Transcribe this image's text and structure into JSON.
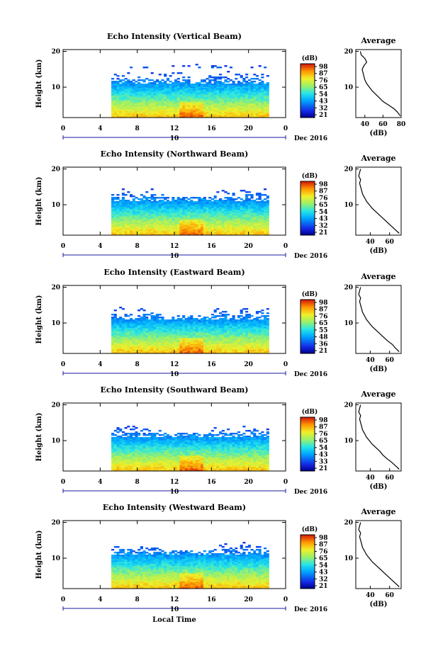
{
  "chart_data": [
    {
      "type": "heatmap",
      "title": "Echo Intensity (Vertical Beam)",
      "ylabel": "Height (km)",
      "yticks": [
        "20",
        "10"
      ],
      "ylim": [
        1.5,
        20.5
      ],
      "xticks": [
        "0",
        "4",
        "8",
        "12",
        "16",
        "20",
        "0"
      ],
      "xlim": [
        0,
        24
      ],
      "date_label": "10",
      "month_label": "Dec 2016",
      "data_start_hour": 5.2,
      "data_end_hour": 22.2,
      "colorbar": {
        "unit": "(dB)",
        "ticks": [
          "98",
          "87",
          "76",
          "65",
          "54",
          "43",
          "32",
          "21"
        ],
        "range": [
          21,
          98
        ]
      },
      "profile": {
        "title": "Average",
        "xlabel": "(dB)",
        "xticks": [
          "40",
          "60",
          "80"
        ],
        "xlim": [
          30,
          80
        ],
        "yticks": [
          "20",
          "10"
        ],
        "heights": [
          2,
          3,
          4,
          5,
          6,
          7,
          8,
          9,
          10,
          11,
          12,
          13,
          14,
          15,
          16,
          17,
          18,
          19,
          20
        ],
        "values": [
          79,
          76,
          72,
          66,
          60,
          56,
          52,
          48,
          45,
          42,
          40,
          39,
          38,
          37,
          39,
          42,
          40,
          36,
          35
        ]
      }
    },
    {
      "type": "heatmap",
      "title": "Echo Intensity (Northward Beam)",
      "ylabel": "Height (km)",
      "yticks": [
        "20",
        "10"
      ],
      "ylim": [
        1.5,
        20.5
      ],
      "xticks": [
        "0",
        "4",
        "8",
        "12",
        "16",
        "20",
        "0"
      ],
      "xlim": [
        0,
        24
      ],
      "date_label": "10",
      "month_label": "Dec 2016",
      "data_start_hour": 5.2,
      "data_end_hour": 22.2,
      "colorbar": {
        "unit": "(dB)",
        "ticks": [
          "98",
          "87",
          "76",
          "65",
          "54",
          "43",
          "32",
          "21"
        ],
        "range": [
          21,
          98
        ]
      },
      "profile": {
        "title": "Average",
        "xlabel": "(dB)",
        "xticks": [
          "40",
          "60"
        ],
        "xlim": [
          25,
          72
        ],
        "yticks": [
          "20",
          "10"
        ],
        "heights": [
          2,
          3,
          4,
          5,
          6,
          7,
          8,
          9,
          10,
          11,
          12,
          13,
          14,
          15,
          16,
          17,
          18,
          19,
          20
        ],
        "values": [
          70,
          66,
          62,
          58,
          54,
          50,
          46,
          42,
          39,
          36,
          34,
          32,
          31,
          30,
          29,
          30,
          28,
          29,
          30
        ]
      }
    },
    {
      "type": "heatmap",
      "title": "Echo Intensity (Eastward Beam)",
      "ylabel": "Height (km)",
      "yticks": [
        "20",
        "10"
      ],
      "ylim": [
        1.5,
        20.5
      ],
      "xticks": [
        "0",
        "4",
        "8",
        "12",
        "16",
        "20",
        "0"
      ],
      "xlim": [
        0,
        24
      ],
      "date_label": "10",
      "month_label": "Dec 2016",
      "data_start_hour": 5.2,
      "data_end_hour": 22.2,
      "colorbar": {
        "unit": "(dB)",
        "ticks": [
          "98",
          "87",
          "76",
          "65",
          "55",
          "48",
          "36",
          "21"
        ],
        "range": [
          21,
          98
        ]
      },
      "profile": {
        "title": "Average",
        "xlabel": "(dB)",
        "xticks": [
          "40",
          "60"
        ],
        "xlim": [
          25,
          72
        ],
        "yticks": [
          "20",
          "10"
        ],
        "heights": [
          2,
          3,
          4,
          5,
          6,
          7,
          8,
          9,
          10,
          11,
          12,
          13,
          14,
          15,
          16,
          17,
          18,
          19,
          20
        ],
        "values": [
          70,
          66,
          63,
          58,
          54,
          50,
          46,
          42,
          39,
          36,
          34,
          32,
          31,
          30,
          29,
          30,
          28,
          29,
          30
        ]
      }
    },
    {
      "type": "heatmap",
      "title": "Echo Intensity (Southward Beam)",
      "ylabel": "Height (km)",
      "yticks": [
        "20",
        "10"
      ],
      "ylim": [
        1.5,
        20.5
      ],
      "xticks": [
        "0",
        "4",
        "8",
        "12",
        "16",
        "20",
        "0"
      ],
      "xlim": [
        0,
        24
      ],
      "date_label": "10",
      "month_label": "Dec 2016",
      "data_start_hour": 5.2,
      "data_end_hour": 22.2,
      "colorbar": {
        "unit": "(dB)",
        "ticks": [
          "98",
          "87",
          "76",
          "65",
          "54",
          "43",
          "33",
          "21"
        ],
        "range": [
          21,
          98
        ]
      },
      "profile": {
        "title": "Average",
        "xlabel": "(dB)",
        "xticks": [
          "40",
          "60"
        ],
        "xlim": [
          25,
          72
        ],
        "yticks": [
          "20",
          "10"
        ],
        "heights": [
          2,
          3,
          4,
          5,
          6,
          7,
          8,
          9,
          10,
          11,
          12,
          13,
          14,
          15,
          16,
          17,
          18,
          19,
          20
        ],
        "values": [
          70,
          66,
          62,
          57,
          53,
          50,
          46,
          42,
          39,
          36,
          34,
          32,
          31,
          30,
          29,
          30,
          28,
          29,
          30
        ]
      }
    },
    {
      "type": "heatmap",
      "title": "Echo Intensity (Westward Beam)",
      "ylabel": "Height (km)",
      "yticks": [
        "20",
        "10"
      ],
      "ylim": [
        1.5,
        20.5
      ],
      "xticks": [
        "0",
        "4",
        "8",
        "12",
        "16",
        "20",
        "0"
      ],
      "xlim": [
        0,
        24
      ],
      "date_label": "10",
      "month_label": "Dec 2016",
      "xlabel": "Local Time",
      "data_start_hour": 5.2,
      "data_end_hour": 22.2,
      "colorbar": {
        "unit": "(dB)",
        "ticks": [
          "98",
          "87",
          "76",
          "65",
          "54",
          "43",
          "32",
          "21"
        ],
        "range": [
          21,
          98
        ]
      },
      "profile": {
        "title": "Average",
        "xlabel": "(dB)",
        "xticks": [
          "40",
          "60"
        ],
        "xlim": [
          25,
          72
        ],
        "yticks": [
          "20",
          "10"
        ],
        "heights": [
          2,
          3,
          4,
          5,
          6,
          7,
          8,
          9,
          10,
          11,
          12,
          13,
          14,
          15,
          16,
          17,
          18,
          19,
          20
        ],
        "values": [
          70,
          66,
          62,
          58,
          54,
          50,
          46,
          42,
          39,
          36,
          34,
          32,
          31,
          30,
          29,
          30,
          28,
          29,
          30
        ]
      }
    }
  ]
}
